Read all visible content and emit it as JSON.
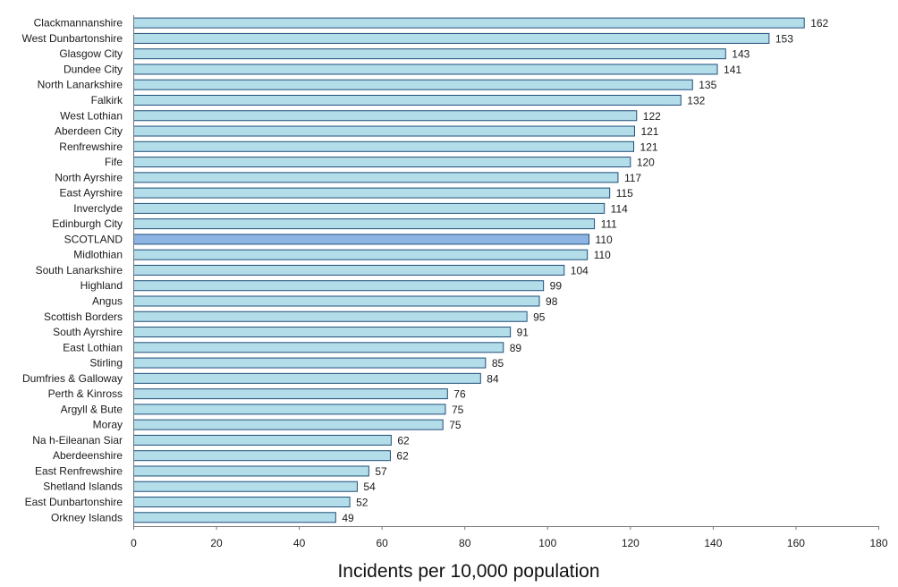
{
  "chart_data": {
    "type": "bar",
    "orientation": "horizontal",
    "categories": [
      "Clackmannanshire",
      "West Dunbartonshire",
      "Glasgow City",
      "Dundee City",
      "North Lanarkshire",
      "Falkirk",
      "West Lothian",
      "Aberdeen City",
      "Renfrewshire",
      "Fife",
      "North Ayrshire",
      "East Ayrshire",
      "Inverclyde",
      "Edinburgh City",
      "SCOTLAND",
      "Midlothian",
      "South Lanarkshire",
      "Highland",
      "Angus",
      "Scottish Borders",
      "South Ayrshire",
      "East Lothian",
      "Stirling",
      "Dumfries & Galloway",
      "Perth & Kinross",
      "Argyll & Bute",
      "Moray",
      "Na h-Eileanan Siar",
      "Aberdeenshire",
      "East Renfrewshire",
      "Shetland Islands",
      "East Dunbartonshire",
      "Orkney Islands"
    ],
    "values": [
      162,
      153,
      143,
      141,
      135,
      132,
      122,
      121,
      121,
      120,
      117,
      115,
      114,
      111,
      110,
      110,
      104,
      99,
      98,
      95,
      91,
      89,
      85,
      84,
      76,
      75,
      75,
      62,
      62,
      57,
      54,
      52,
      49
    ],
    "plot_values": [
      162,
      153.5,
      143,
      141,
      135,
      132.2,
      121.5,
      121,
      120.8,
      120,
      117,
      115,
      113.7,
      111.3,
      110,
      109.6,
      104,
      99,
      98,
      95,
      91,
      89.3,
      85,
      83.8,
      75.8,
      75.3,
      74.7,
      62.2,
      62,
      56.8,
      54,
      52.2,
      48.8
    ],
    "highlight_category": "SCOTLAND",
    "xlabel": "Incidents per 10,000 population",
    "ylabel": "",
    "xlim": [
      0,
      180
    ],
    "xticks": [
      0,
      20,
      40,
      60,
      80,
      100,
      120,
      140,
      160,
      180
    ],
    "grid": false,
    "colors": {
      "bar_fill": "#b3dde9",
      "bar_stroke": "#1f4e79",
      "highlight_fill": "#8eb4e3",
      "highlight_stroke": "#1f4e79"
    }
  }
}
